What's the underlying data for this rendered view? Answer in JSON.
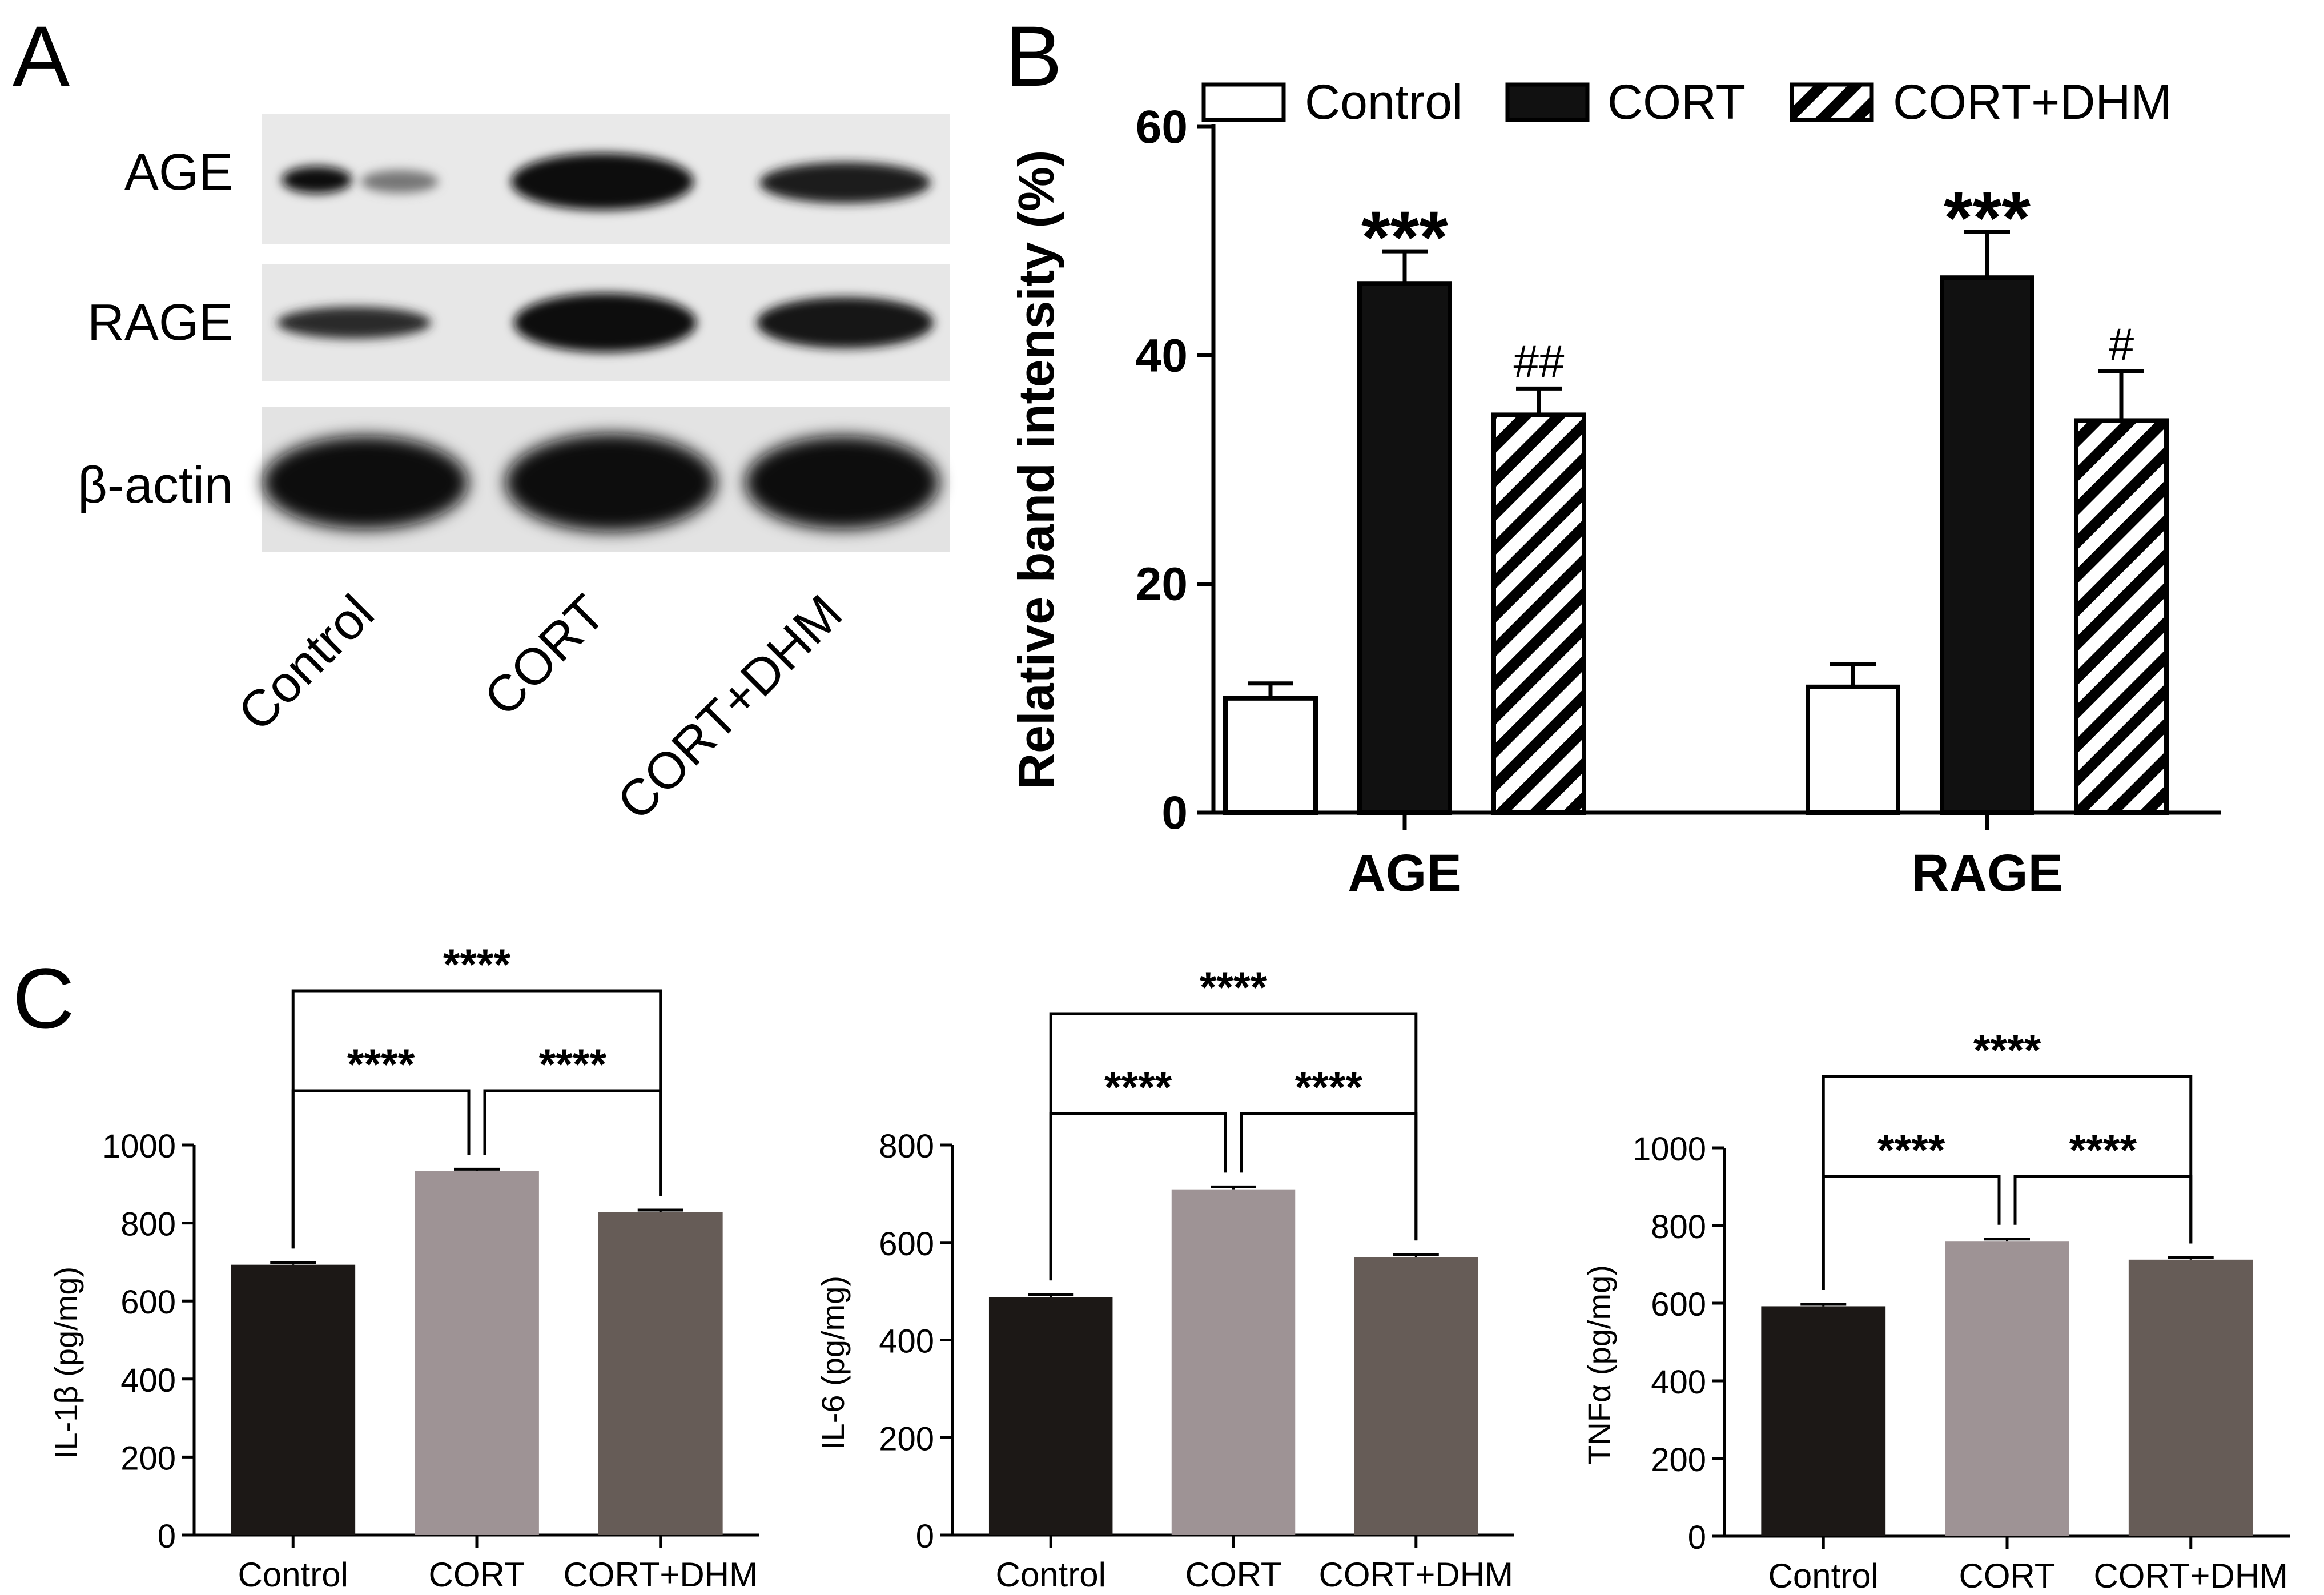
{
  "panels": {
    "a": "A",
    "b": "B",
    "c": "C"
  },
  "blot": {
    "row_labels": [
      "AGE",
      "RAGE",
      "β-actin"
    ],
    "lane_labels": [
      "Control",
      "CORT",
      "CORT+DHM"
    ]
  },
  "colors": {
    "control_c": "#1c1816",
    "cort_c": "#9e9395",
    "cortdhm_c": "#665c57",
    "axis": "#000000"
  },
  "chart_data": [
    {
      "id": "B",
      "type": "bar",
      "title": "",
      "xlabel": "",
      "ylabel": "Relative band intensity (%)",
      "ylim": [
        0,
        60
      ],
      "yticks": [
        0,
        20,
        40,
        60
      ],
      "categories": [
        "AGE",
        "RAGE"
      ],
      "legend": {
        "placement": "top"
      },
      "series": [
        {
          "name": "Control",
          "fill": "white",
          "values": [
            10,
            11
          ],
          "errors": [
            1.3,
            2.0
          ],
          "annotations": [
            "",
            ""
          ]
        },
        {
          "name": "CORT",
          "fill": "black",
          "values": [
            46.3,
            46.8
          ],
          "errors": [
            2.8,
            4.0
          ],
          "annotations": [
            "***",
            "***"
          ]
        },
        {
          "name": "CORT+DHM",
          "fill": "hatch",
          "values": [
            34.8,
            34.3
          ],
          "errors": [
            2.3,
            4.3
          ],
          "annotations": [
            "##",
            "#"
          ]
        }
      ]
    },
    {
      "id": "C1",
      "type": "bar",
      "ylabel": "IL-1β (pg/mg)",
      "ylim": [
        0,
        1000
      ],
      "yticks": [
        0,
        200,
        400,
        600,
        800,
        1000
      ],
      "categories": [
        "Control",
        "CORT",
        "CORT+DHM"
      ],
      "values": [
        693,
        933,
        828
      ],
      "errors": [
        5,
        5,
        5
      ],
      "significance": [
        {
          "from": 0,
          "to": 2,
          "label": "****",
          "tier": 2
        },
        {
          "from": 0,
          "to": 1,
          "label": "****",
          "tier": 1
        },
        {
          "from": 1,
          "to": 2,
          "label": "****",
          "tier": 1
        }
      ]
    },
    {
      "id": "C2",
      "type": "bar",
      "ylabel": "IL-6 (pg/mg)",
      "ylim": [
        0,
        800
      ],
      "yticks": [
        0,
        200,
        400,
        600,
        800
      ],
      "categories": [
        "Control",
        "CORT",
        "CORT+DHM"
      ],
      "values": [
        488,
        709,
        570
      ],
      "errors": [
        5,
        5,
        5
      ],
      "significance": [
        {
          "from": 0,
          "to": 2,
          "label": "****",
          "tier": 2
        },
        {
          "from": 0,
          "to": 1,
          "label": "****",
          "tier": 1
        },
        {
          "from": 1,
          "to": 2,
          "label": "****",
          "tier": 1
        }
      ]
    },
    {
      "id": "C3",
      "type": "bar",
      "ylabel": "TNFα (pg/mg)",
      "ylim": [
        0,
        1000
      ],
      "yticks": [
        0,
        200,
        400,
        600,
        800,
        1000
      ],
      "categories": [
        "Control",
        "CORT",
        "CORT+DHM"
      ],
      "values": [
        592,
        760,
        712
      ],
      "errors": [
        5,
        5,
        5
      ],
      "significance": [
        {
          "from": 0,
          "to": 2,
          "label": "****",
          "tier": 2
        },
        {
          "from": 0,
          "to": 1,
          "label": "****",
          "tier": 1
        },
        {
          "from": 1,
          "to": 2,
          "label": "****",
          "tier": 1
        }
      ]
    }
  ]
}
